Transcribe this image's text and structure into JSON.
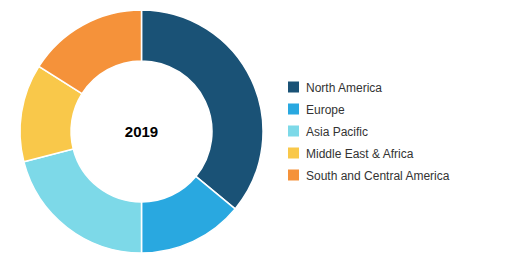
{
  "chart_data": {
    "type": "donut",
    "categories": [
      "North America",
      "Europe",
      "Asia Pacific",
      "Middle East & Africa",
      "South and Central America"
    ],
    "values": [
      36,
      14,
      21,
      13,
      16
    ],
    "colors": [
      "#1a5276",
      "#29a8e0",
      "#7dd9e8",
      "#f9c84a",
      "#f5923a"
    ],
    "annotations": [
      "2019"
    ],
    "legend": "right"
  }
}
